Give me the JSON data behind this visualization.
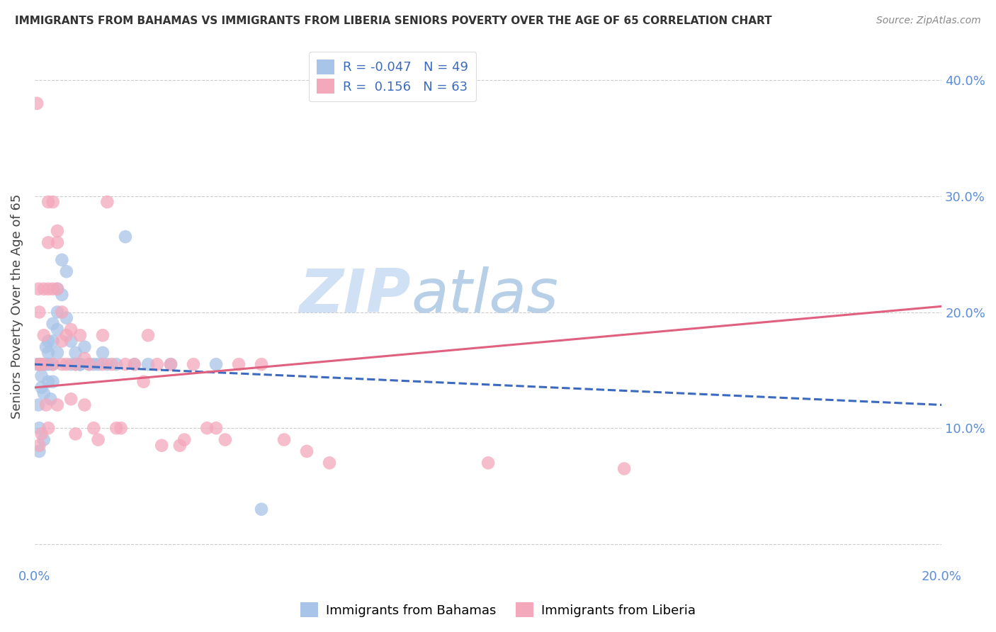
{
  "title": "IMMIGRANTS FROM BAHAMAS VS IMMIGRANTS FROM LIBERIA SENIORS POVERTY OVER THE AGE OF 65 CORRELATION CHART",
  "source": "Source: ZipAtlas.com",
  "ylabel": "Seniors Poverty Over the Age of 65",
  "yticks": [
    0.0,
    0.1,
    0.2,
    0.3,
    0.4
  ],
  "ytick_labels": [
    "",
    "10.0%",
    "20.0%",
    "30.0%",
    "40.0%"
  ],
  "xlim": [
    0.0,
    0.2
  ],
  "ylim": [
    -0.02,
    0.43
  ],
  "legend_r1": "R = -0.047",
  "legend_n1": "N = 49",
  "legend_r2": "R =  0.156",
  "legend_n2": "N = 63",
  "series1_label": "Immigrants from Bahamas",
  "series2_label": "Immigrants from Liberia",
  "series1_color": "#a8c4e8",
  "series2_color": "#f4a8bb",
  "trendline1_color": "#3b6abf",
  "trendline2_color": "#e06080",
  "watermark_color": "#d0e0f5",
  "bahamas_x": [
    0.0005,
    0.0008,
    0.001,
    0.001,
    0.0012,
    0.0015,
    0.0015,
    0.002,
    0.002,
    0.002,
    0.0025,
    0.0025,
    0.003,
    0.003,
    0.003,
    0.003,
    0.0035,
    0.004,
    0.004,
    0.004,
    0.004,
    0.005,
    0.005,
    0.005,
    0.005,
    0.006,
    0.006,
    0.007,
    0.007,
    0.008,
    0.008,
    0.009,
    0.009,
    0.01,
    0.01,
    0.01,
    0.011,
    0.012,
    0.013,
    0.014,
    0.015,
    0.016,
    0.018,
    0.02,
    0.022,
    0.025,
    0.03,
    0.04,
    0.05
  ],
  "bahamas_y": [
    0.155,
    0.12,
    0.1,
    0.08,
    0.155,
    0.145,
    0.135,
    0.155,
    0.13,
    0.09,
    0.17,
    0.155,
    0.175,
    0.165,
    0.155,
    0.14,
    0.125,
    0.19,
    0.175,
    0.155,
    0.14,
    0.22,
    0.2,
    0.185,
    0.165,
    0.245,
    0.215,
    0.235,
    0.195,
    0.175,
    0.155,
    0.165,
    0.155,
    0.155,
    0.155,
    0.155,
    0.17,
    0.155,
    0.155,
    0.155,
    0.165,
    0.155,
    0.155,
    0.265,
    0.155,
    0.155,
    0.155,
    0.155,
    0.03
  ],
  "liberia_x": [
    0.0005,
    0.0008,
    0.001,
    0.001,
    0.001,
    0.0012,
    0.0015,
    0.002,
    0.002,
    0.002,
    0.0025,
    0.003,
    0.003,
    0.003,
    0.003,
    0.004,
    0.004,
    0.004,
    0.005,
    0.005,
    0.005,
    0.005,
    0.006,
    0.006,
    0.006,
    0.007,
    0.007,
    0.008,
    0.008,
    0.009,
    0.009,
    0.01,
    0.011,
    0.011,
    0.012,
    0.013,
    0.014,
    0.015,
    0.015,
    0.016,
    0.017,
    0.018,
    0.019,
    0.02,
    0.022,
    0.024,
    0.025,
    0.027,
    0.028,
    0.03,
    0.032,
    0.033,
    0.035,
    0.038,
    0.04,
    0.042,
    0.045,
    0.05,
    0.055,
    0.06,
    0.065,
    0.1,
    0.13
  ],
  "liberia_y": [
    0.38,
    0.22,
    0.2,
    0.155,
    0.085,
    0.155,
    0.095,
    0.22,
    0.18,
    0.155,
    0.12,
    0.295,
    0.26,
    0.22,
    0.1,
    0.295,
    0.22,
    0.155,
    0.27,
    0.26,
    0.22,
    0.12,
    0.2,
    0.175,
    0.155,
    0.18,
    0.155,
    0.185,
    0.125,
    0.155,
    0.095,
    0.18,
    0.16,
    0.12,
    0.155,
    0.1,
    0.09,
    0.18,
    0.155,
    0.295,
    0.155,
    0.1,
    0.1,
    0.155,
    0.155,
    0.14,
    0.18,
    0.155,
    0.085,
    0.155,
    0.085,
    0.09,
    0.155,
    0.1,
    0.1,
    0.09,
    0.155,
    0.155,
    0.09,
    0.08,
    0.07,
    0.07,
    0.065
  ],
  "trendline1_x": [
    0.0,
    0.2
  ],
  "trendline1_y": [
    0.155,
    0.12
  ],
  "trendline2_x": [
    0.0,
    0.2
  ],
  "trendline2_y": [
    0.135,
    0.205
  ]
}
